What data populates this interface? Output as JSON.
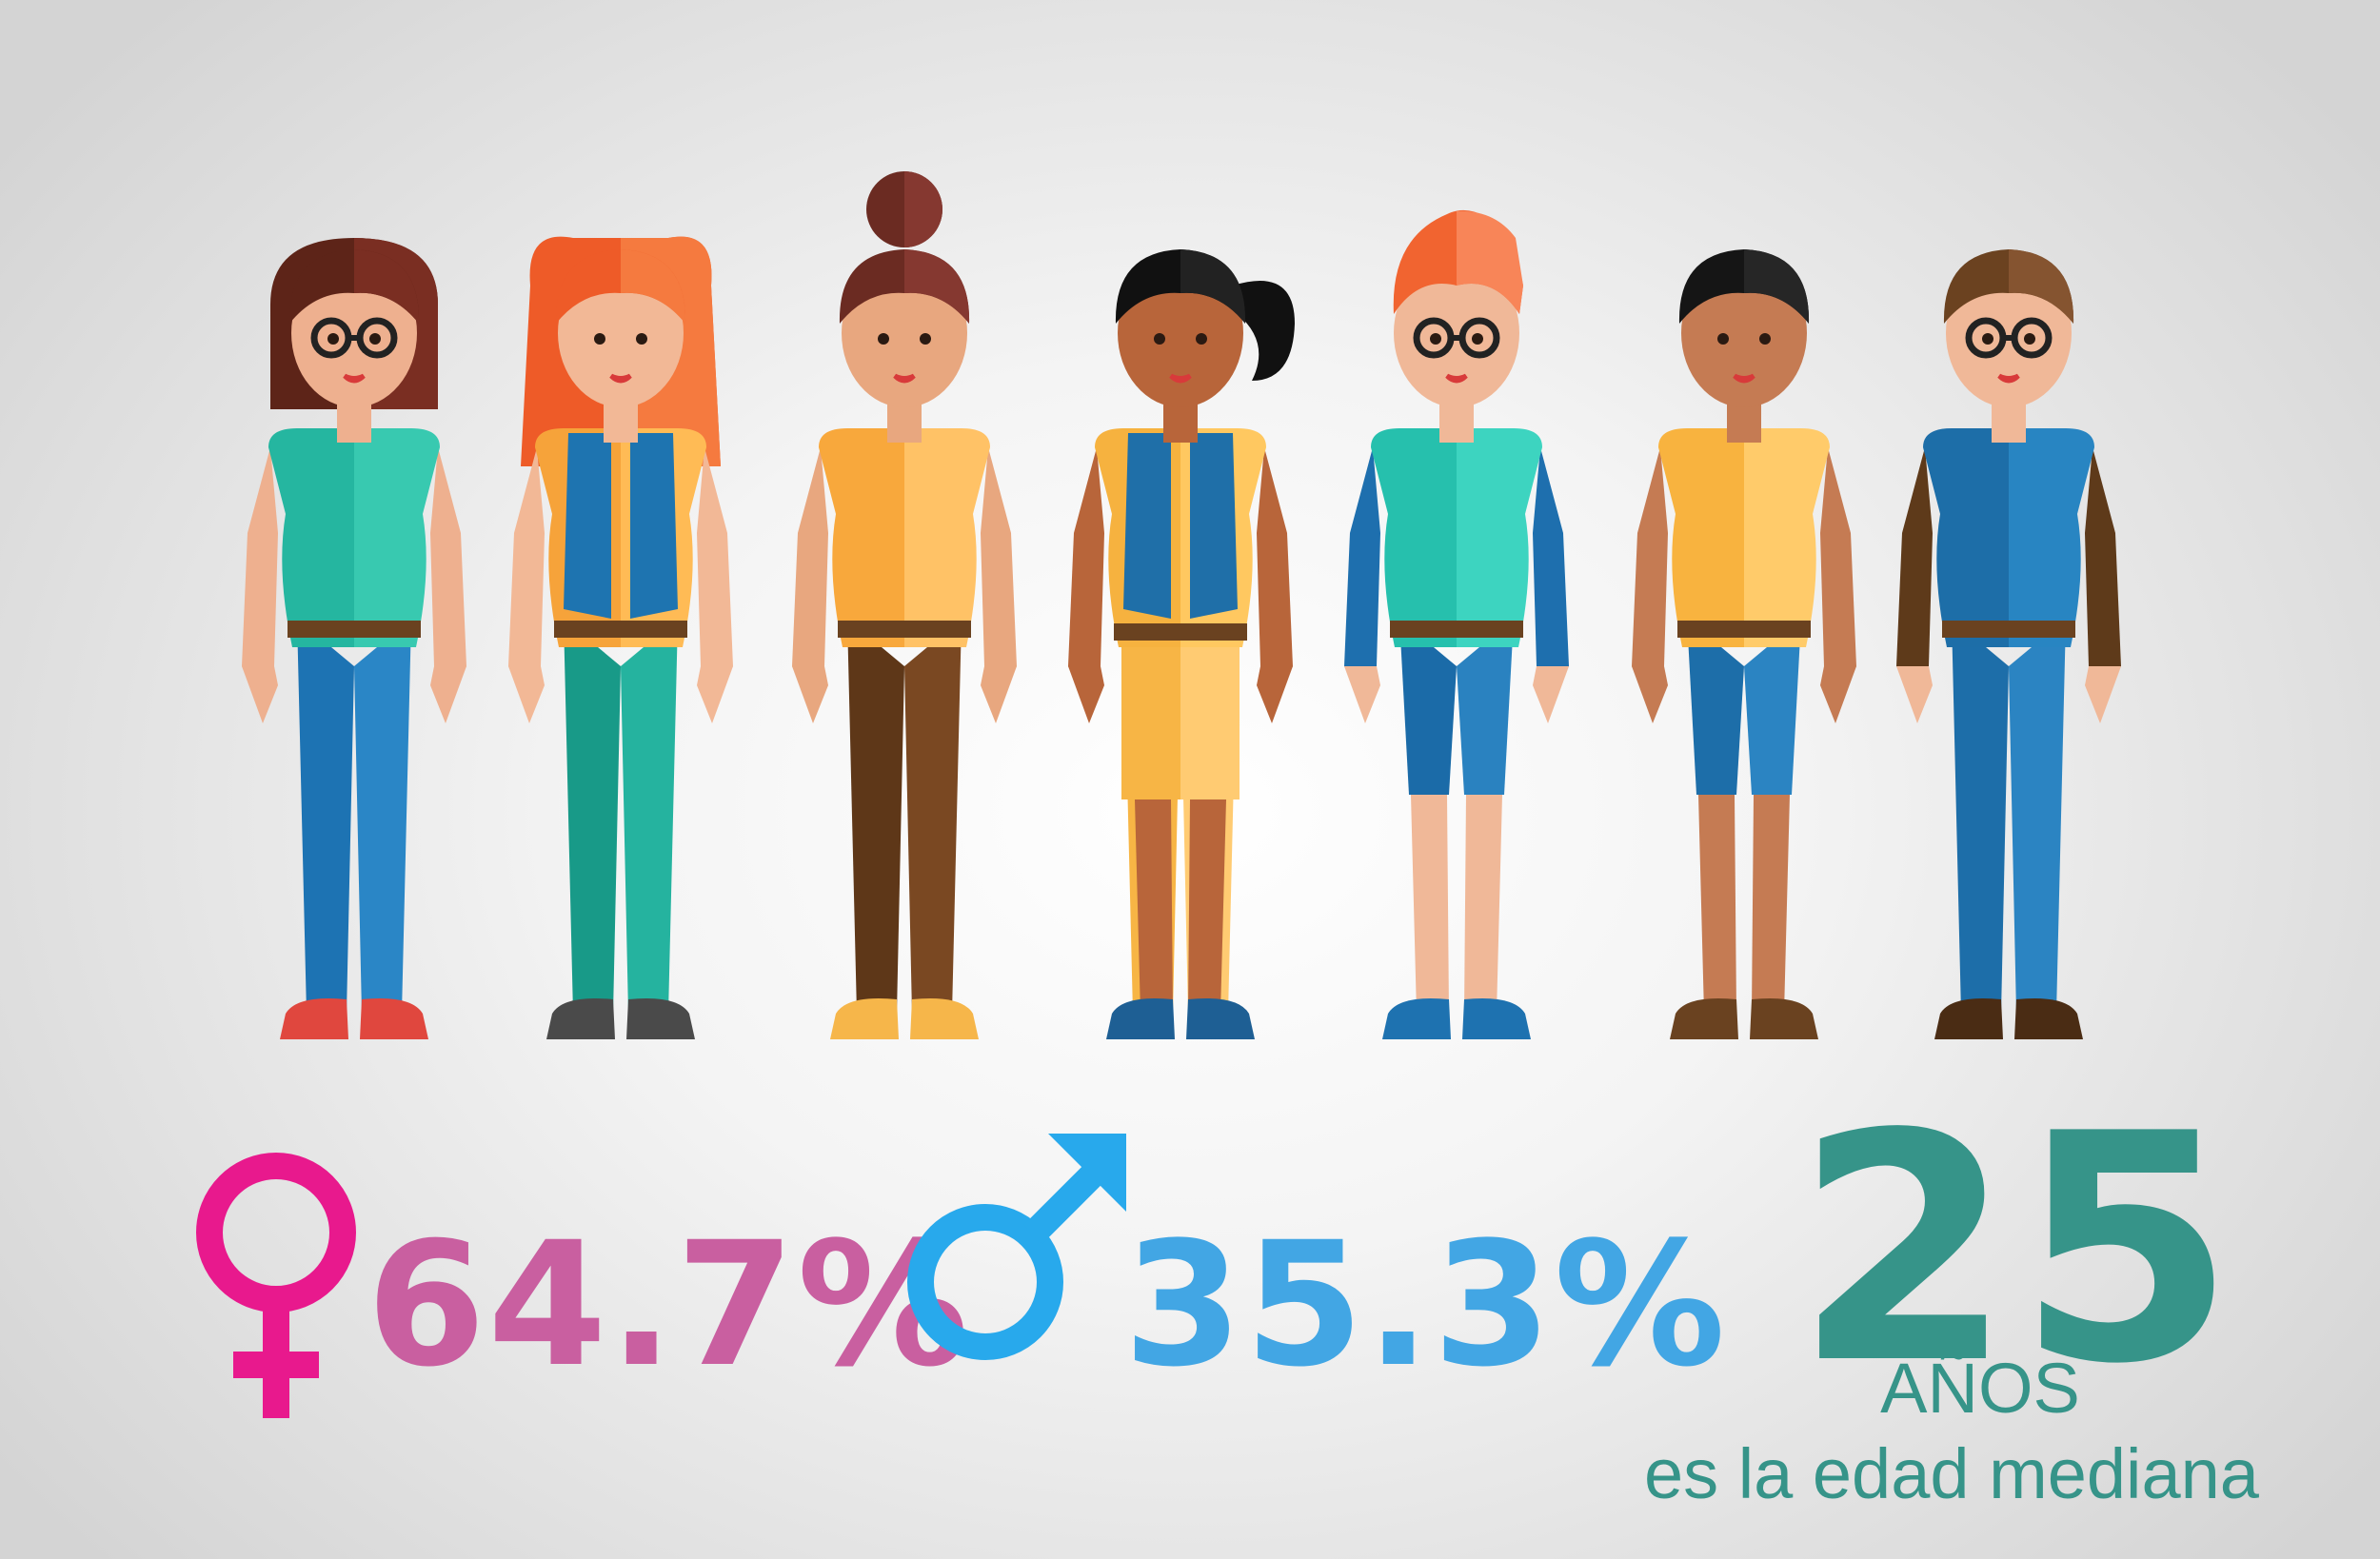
{
  "illustration": {
    "figures": [
      {
        "id": "woman-1",
        "gender": "female",
        "hair": "bob",
        "glasses": true,
        "colors": {
          "hair": "#5d2418",
          "hair_hi": "#7a2e22",
          "skin": "#eeb08f",
          "top": "#25b6a0",
          "top_hi": "#38c9b0",
          "pants": "#1d73b3",
          "pants_hi": "#2a86c6",
          "shoes": "#e0473e"
        }
      },
      {
        "id": "woman-2",
        "gender": "female",
        "hair": "long",
        "glasses": false,
        "colors": {
          "hair": "#ee5b28",
          "hair_hi": "#f57a3f",
          "skin": "#f2b896",
          "top": "#f6a33a",
          "top_hi": "#ffbb55",
          "vest": "#1e74b0",
          "pants": "#189a88",
          "pants_hi": "#25b39f",
          "shoes": "#4a4a4a"
        }
      },
      {
        "id": "woman-3",
        "gender": "female",
        "hair": "bun",
        "glasses": false,
        "colors": {
          "hair": "#6b2b22",
          "hair_hi": "#853830",
          "skin": "#e8a77f",
          "top": "#f8a83c",
          "top_hi": "#ffc266",
          "pants": "#5e3718",
          "pants_hi": "#7a4822",
          "shoes": "#f6b64a"
        }
      },
      {
        "id": "woman-4",
        "gender": "female",
        "hair": "ponytail",
        "glasses": false,
        "colors": {
          "hair": "#111111",
          "hair_hi": "#222222",
          "skin": "#b8653a",
          "top": "#f6b23f",
          "top_hi": "#ffc860",
          "vest": "#1f6fa8",
          "pants": "#f7b545",
          "pants_hi": "#ffcb72",
          "shoes": "#1e5f94"
        }
      },
      {
        "id": "man-1",
        "gender": "male",
        "hair": "spiky",
        "glasses": true,
        "colors": {
          "hair": "#f16430",
          "hair_hi": "#f88558",
          "skin": "#f0b898",
          "top": "#26c0ad",
          "top_hi": "#3dd4c0",
          "sleeve": "#1e6fae",
          "pants": "#1b6ba8",
          "pants_hi": "#2a82c0",
          "shoes": "#1e72b0"
        }
      },
      {
        "id": "man-2",
        "gender": "male",
        "hair": "short",
        "glasses": false,
        "colors": {
          "hair": "#151515",
          "hair_hi": "#262626",
          "skin": "#c57b53",
          "top": "#f8b33f",
          "top_hi": "#ffcb6a",
          "pants": "#1d6ea9",
          "pants_hi": "#2b84c2",
          "shoes": "#6a4220"
        }
      },
      {
        "id": "man-3",
        "gender": "male",
        "hair": "short",
        "glasses": true,
        "colors": {
          "hair": "#6b4220",
          "hair_hi": "#855430",
          "skin": "#f0b898",
          "top": "#1d6ea8",
          "top_hi": "#2885c2",
          "sleeve": "#5e3a1a",
          "pants": "#1d6ea9",
          "pants_hi": "#2b84c2",
          "shoes": "#4a2c14"
        }
      }
    ]
  },
  "stats": {
    "female": {
      "value": "64.7%",
      "symbol": "female-symbol",
      "color": "#c95fa0",
      "symbol_color": "#e8198d"
    },
    "male": {
      "value": "35.3%",
      "symbol": "male-symbol",
      "color": "#42a6e4",
      "symbol_color": "#28a9ec"
    },
    "age": {
      "value": "25",
      "unit": "AÑOS",
      "caption": "es la edad mediana",
      "color": "#369489"
    }
  }
}
